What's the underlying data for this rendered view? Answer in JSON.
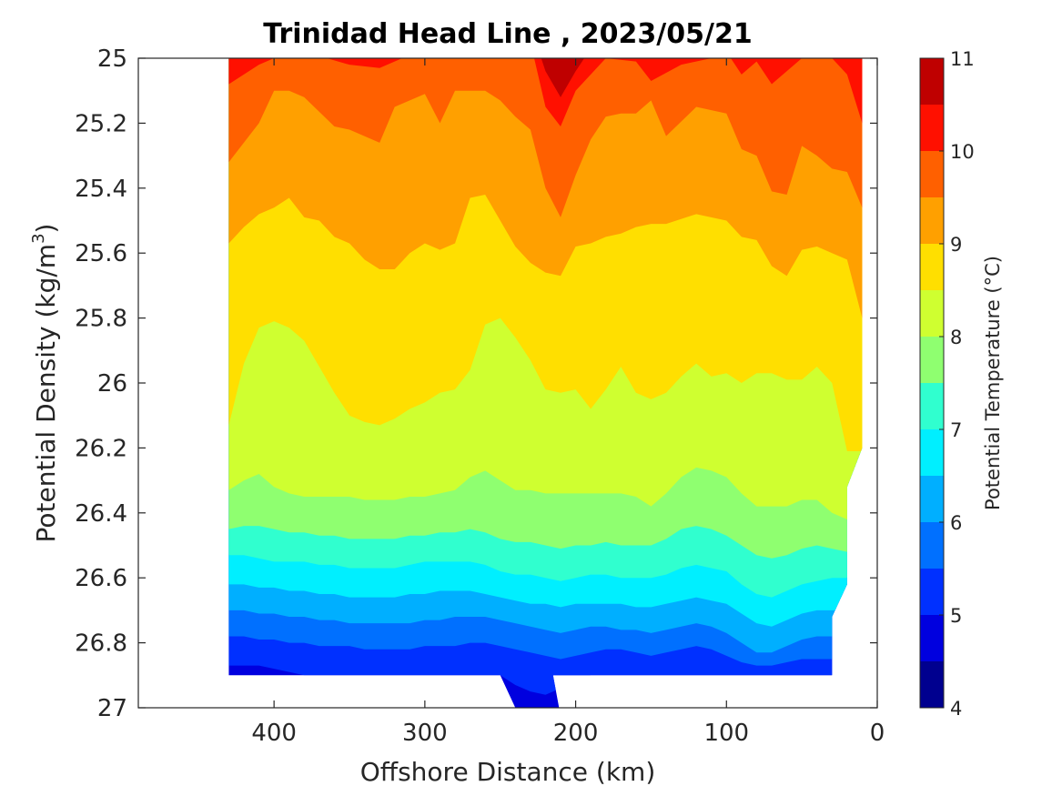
{
  "chart_data": {
    "type": "contour",
    "title": "Trinidad Head Line , 2023/05/21",
    "xlabel": "Offshore Distance (km)",
    "ylabel": "Potential Density (kg/m",
    "ylabel_sup": "3",
    "ylabel_close": ")",
    "xlim": [
      490,
      0
    ],
    "ylim": [
      25,
      27
    ],
    "x_reversed": true,
    "y_reversed": true,
    "xticks": [
      400,
      300,
      200,
      100,
      0
    ],
    "xtick_labels": [
      "400",
      "300",
      "200",
      "100",
      "0"
    ],
    "yticks": [
      25,
      25.2,
      25.4,
      25.6,
      25.8,
      26,
      26.2,
      26.4,
      26.6,
      26.8,
      27
    ],
    "ytick_labels": [
      "25",
      "25.2",
      "25.4",
      "25.6",
      "25.8",
      "26",
      "26.2",
      "26.4",
      "26.6",
      "26.8",
      "27"
    ],
    "colorbar": {
      "label": "Potential Temperature (°C)",
      "range": [
        4,
        11
      ],
      "ticks": [
        4,
        5,
        6,
        7,
        8,
        9,
        10,
        11
      ],
      "tick_labels": [
        "4",
        "5",
        "6",
        "7",
        "8",
        "9",
        "10",
        "11"
      ],
      "levels": [
        4,
        4.5,
        5,
        5.5,
        6,
        6.5,
        7,
        7.5,
        8,
        8.5,
        9,
        9.5,
        10,
        10.5,
        11
      ],
      "colors": [
        "#00008f",
        "#0000df",
        "#0030ff",
        "#0070ff",
        "#00afff",
        "#00efff",
        "#30ffcf",
        "#8fff70",
        "#cfff30",
        "#ffdf00",
        "#ffa000",
        "#ff6000",
        "#ff1000",
        "#bf0000"
      ]
    },
    "data_extent": {
      "x_range": [
        430,
        10
      ],
      "deep_bottom_density": 26.9,
      "trough": {
        "x": [
          250,
          210
        ],
        "density_max": 27
      }
    },
    "isotherms": [
      {
        "level": 10.5,
        "x": [
          430,
          410,
          400,
          380,
          350,
          330,
          300,
          280,
          260,
          240,
          230,
          220,
          210,
          200,
          180,
          160,
          150,
          130,
          110,
          100,
          80,
          60,
          50,
          30,
          20,
          10
        ],
        "density": [
          24.9,
          24.9,
          24.9,
          24.9,
          24.9,
          24.9,
          24.9,
          24.9,
          24.9,
          24.9,
          24.9,
          25.04,
          25.12,
          25.04,
          24.9,
          24.9,
          24.9,
          24.9,
          24.9,
          24.9,
          24.9,
          24.9,
          24.9,
          24.9,
          24.9,
          24.9
        ]
      },
      {
        "level": 10.0,
        "x": [
          430,
          410,
          400,
          380,
          350,
          330,
          300,
          280,
          260,
          240,
          230,
          220,
          210,
          200,
          180,
          160,
          150,
          130,
          110,
          100,
          90,
          80,
          70,
          60,
          50,
          40,
          30,
          20,
          10
        ],
        "density": [
          25.08,
          25.02,
          25.0,
          24.98,
          25.02,
          25.03,
          24.97,
          24.98,
          24.98,
          24.95,
          24.95,
          25.15,
          25.21,
          25.1,
          25.0,
          25.01,
          25.07,
          25.02,
          25.0,
          24.98,
          25.05,
          25.01,
          25.08,
          25.04,
          25.0,
          25.0,
          25.0,
          25.05,
          25.2
        ]
      },
      {
        "level": 9.5,
        "x": [
          430,
          410,
          400,
          390,
          380,
          360,
          350,
          330,
          320,
          300,
          290,
          280,
          270,
          260,
          250,
          240,
          230,
          220,
          210,
          200,
          190,
          180,
          170,
          160,
          150,
          140,
          120,
          100,
          90,
          80,
          70,
          60,
          50,
          40,
          30,
          20,
          10
        ],
        "density": [
          25.32,
          25.2,
          25.1,
          25.1,
          25.12,
          25.21,
          25.22,
          25.26,
          25.15,
          25.11,
          25.2,
          25.1,
          25.1,
          25.1,
          25.13,
          25.18,
          25.22,
          25.4,
          25.49,
          25.36,
          25.25,
          25.18,
          25.17,
          25.17,
          25.13,
          25.24,
          25.15,
          25.17,
          25.28,
          25.3,
          25.41,
          25.42,
          25.27,
          25.3,
          25.34,
          25.35,
          25.46
        ]
      },
      {
        "level": 9.0,
        "x": [
          430,
          420,
          410,
          400,
          390,
          380,
          370,
          360,
          350,
          340,
          330,
          320,
          310,
          300,
          290,
          280,
          270,
          260,
          250,
          240,
          230,
          220,
          210,
          200,
          190,
          180,
          170,
          160,
          150,
          140,
          120,
          100,
          90,
          80,
          70,
          60,
          50,
          40,
          30,
          20,
          10
        ],
        "density": [
          25.57,
          25.52,
          25.48,
          25.46,
          25.43,
          25.49,
          25.5,
          25.55,
          25.57,
          25.62,
          25.65,
          25.65,
          25.6,
          25.57,
          25.59,
          25.57,
          25.43,
          25.42,
          25.5,
          25.58,
          25.63,
          25.66,
          25.67,
          25.58,
          25.57,
          25.55,
          25.54,
          25.52,
          25.51,
          25.51,
          25.48,
          25.5,
          25.55,
          25.56,
          25.64,
          25.67,
          25.59,
          25.58,
          25.6,
          25.62,
          25.8
        ]
      },
      {
        "level": 8.5,
        "x": [
          430,
          420,
          410,
          400,
          390,
          380,
          370,
          360,
          350,
          340,
          330,
          320,
          310,
          300,
          290,
          280,
          270,
          260,
          250,
          240,
          230,
          220,
          210,
          200,
          190,
          180,
          170,
          160,
          150,
          140,
          130,
          120,
          110,
          100,
          90,
          80,
          70,
          60,
          50,
          40,
          30,
          20,
          10
        ],
        "density": [
          26.13,
          25.94,
          25.83,
          25.81,
          25.83,
          25.87,
          25.95,
          26.03,
          26.1,
          26.12,
          26.13,
          26.11,
          26.08,
          26.06,
          26.03,
          26.02,
          25.96,
          25.82,
          25.8,
          25.86,
          25.93,
          26.02,
          26.03,
          26.02,
          26.08,
          26.02,
          25.95,
          26.03,
          26.05,
          26.03,
          25.98,
          25.94,
          25.98,
          25.97,
          26.0,
          25.97,
          25.97,
          25.99,
          25.99,
          25.95,
          26.0,
          26.21,
          26.21
        ]
      },
      {
        "level": 8.0,
        "x": [
          430,
          420,
          410,
          400,
          390,
          380,
          370,
          360,
          350,
          340,
          330,
          320,
          310,
          300,
          290,
          280,
          270,
          260,
          250,
          240,
          230,
          220,
          210,
          200,
          190,
          180,
          170,
          160,
          150,
          140,
          130,
          120,
          110,
          100,
          90,
          80,
          70,
          60,
          50,
          40,
          30,
          20
        ],
        "density": [
          26.33,
          26.3,
          26.28,
          26.32,
          26.34,
          26.35,
          26.35,
          26.35,
          26.35,
          26.36,
          26.36,
          26.36,
          26.35,
          26.35,
          26.34,
          26.33,
          26.29,
          26.27,
          26.3,
          26.33,
          26.33,
          26.34,
          26.34,
          26.34,
          26.34,
          26.34,
          26.34,
          26.35,
          26.38,
          26.34,
          26.29,
          26.26,
          26.27,
          26.29,
          26.34,
          26.38,
          26.38,
          26.38,
          26.36,
          26.36,
          26.4,
          26.42
        ]
      },
      {
        "level": 7.5,
        "x": [
          430,
          420,
          410,
          400,
          390,
          380,
          370,
          360,
          350,
          340,
          330,
          320,
          310,
          300,
          290,
          280,
          270,
          260,
          250,
          240,
          230,
          220,
          210,
          200,
          190,
          180,
          170,
          160,
          150,
          140,
          130,
          120,
          110,
          100,
          90,
          80,
          70,
          60,
          50,
          40,
          30,
          20
        ],
        "density": [
          26.45,
          26.44,
          26.44,
          26.45,
          26.46,
          26.46,
          26.47,
          26.47,
          26.48,
          26.48,
          26.48,
          26.48,
          26.47,
          26.47,
          26.46,
          26.46,
          26.45,
          26.46,
          26.48,
          26.49,
          26.49,
          26.5,
          26.51,
          26.5,
          26.5,
          26.49,
          26.5,
          26.5,
          26.5,
          26.48,
          26.45,
          26.44,
          26.45,
          26.47,
          26.5,
          26.53,
          26.54,
          26.53,
          26.51,
          26.5,
          26.51,
          26.52
        ]
      },
      {
        "level": 7.0,
        "x": [
          430,
          420,
          410,
          400,
          390,
          380,
          370,
          360,
          350,
          340,
          330,
          320,
          310,
          300,
          290,
          280,
          270,
          260,
          250,
          240,
          230,
          220,
          210,
          200,
          190,
          180,
          170,
          160,
          150,
          140,
          130,
          120,
          110,
          100,
          90,
          80,
          70,
          60,
          50,
          40,
          30,
          20
        ],
        "density": [
          26.53,
          26.53,
          26.54,
          26.55,
          26.55,
          26.55,
          26.56,
          26.56,
          26.57,
          26.57,
          26.57,
          26.57,
          26.56,
          26.55,
          26.55,
          26.55,
          26.55,
          26.56,
          26.58,
          26.59,
          26.59,
          26.6,
          26.61,
          26.6,
          26.59,
          26.59,
          26.6,
          26.6,
          26.6,
          26.59,
          26.57,
          26.56,
          26.57,
          26.58,
          26.62,
          26.65,
          26.66,
          26.64,
          26.62,
          26.61,
          26.6,
          26.6
        ]
      },
      {
        "level": 6.5,
        "x": [
          430,
          420,
          410,
          400,
          390,
          380,
          370,
          360,
          350,
          340,
          330,
          320,
          310,
          300,
          290,
          280,
          270,
          260,
          250,
          240,
          230,
          220,
          210,
          200,
          190,
          180,
          170,
          160,
          150,
          140,
          130,
          120,
          110,
          100,
          90,
          80,
          70,
          60,
          50,
          40,
          30
        ],
        "density": [
          26.62,
          26.62,
          26.63,
          26.63,
          26.64,
          26.64,
          26.65,
          26.65,
          26.66,
          26.66,
          26.66,
          26.66,
          26.65,
          26.65,
          26.64,
          26.64,
          26.64,
          26.65,
          26.66,
          26.67,
          26.68,
          26.68,
          26.69,
          26.68,
          26.68,
          26.68,
          26.68,
          26.69,
          26.69,
          26.68,
          26.67,
          26.66,
          26.67,
          26.68,
          26.71,
          26.74,
          26.75,
          26.73,
          26.71,
          26.7,
          26.7
        ]
      },
      {
        "level": 6.0,
        "x": [
          430,
          420,
          410,
          400,
          390,
          380,
          370,
          360,
          350,
          340,
          330,
          320,
          310,
          300,
          290,
          280,
          270,
          260,
          250,
          240,
          230,
          220,
          210,
          200,
          190,
          180,
          170,
          160,
          150,
          140,
          130,
          120,
          110,
          100,
          90,
          80,
          70,
          60,
          50,
          40,
          30
        ],
        "density": [
          26.7,
          26.7,
          26.71,
          26.71,
          26.72,
          26.72,
          26.73,
          26.73,
          26.74,
          26.74,
          26.74,
          26.74,
          26.74,
          26.73,
          26.73,
          26.72,
          26.72,
          26.72,
          26.73,
          26.74,
          26.75,
          26.76,
          26.77,
          26.76,
          26.75,
          26.75,
          26.76,
          26.76,
          26.77,
          26.76,
          26.75,
          26.74,
          26.75,
          26.77,
          26.8,
          26.83,
          26.83,
          26.81,
          26.79,
          26.78,
          26.78
        ]
      },
      {
        "level": 5.5,
        "x": [
          430,
          420,
          410,
          400,
          390,
          380,
          370,
          360,
          350,
          340,
          330,
          320,
          310,
          300,
          290,
          280,
          270,
          260,
          250,
          240,
          230,
          220,
          210,
          200,
          190,
          180,
          170,
          160,
          150,
          140,
          130,
          120,
          110,
          100,
          90,
          80,
          70,
          60,
          50,
          40,
          30
        ],
        "density": [
          26.78,
          26.78,
          26.79,
          26.79,
          26.8,
          26.8,
          26.81,
          26.81,
          26.81,
          26.82,
          26.82,
          26.82,
          26.82,
          26.81,
          26.81,
          26.81,
          26.8,
          26.8,
          26.81,
          26.82,
          26.83,
          26.84,
          26.85,
          26.84,
          26.83,
          26.82,
          26.82,
          26.83,
          26.84,
          26.83,
          26.82,
          26.81,
          26.82,
          26.84,
          26.86,
          26.87,
          26.87,
          26.86,
          26.85,
          26.85,
          26.85
        ]
      },
      {
        "level": 5.0,
        "x": [
          430,
          410,
          400,
          380,
          350,
          300,
          260,
          250,
          240,
          230,
          220,
          210,
          200,
          190,
          180,
          160,
          150,
          130,
          100,
          80,
          60,
          40,
          30
        ],
        "density": [
          26.87,
          26.87,
          26.88,
          26.9,
          26.9,
          26.9,
          26.9,
          26.9,
          26.93,
          26.95,
          26.96,
          26.94,
          26.91,
          26.9,
          26.9,
          26.9,
          26.9,
          26.9,
          26.9,
          26.9,
          26.9,
          26.9,
          26.9
        ]
      }
    ]
  }
}
